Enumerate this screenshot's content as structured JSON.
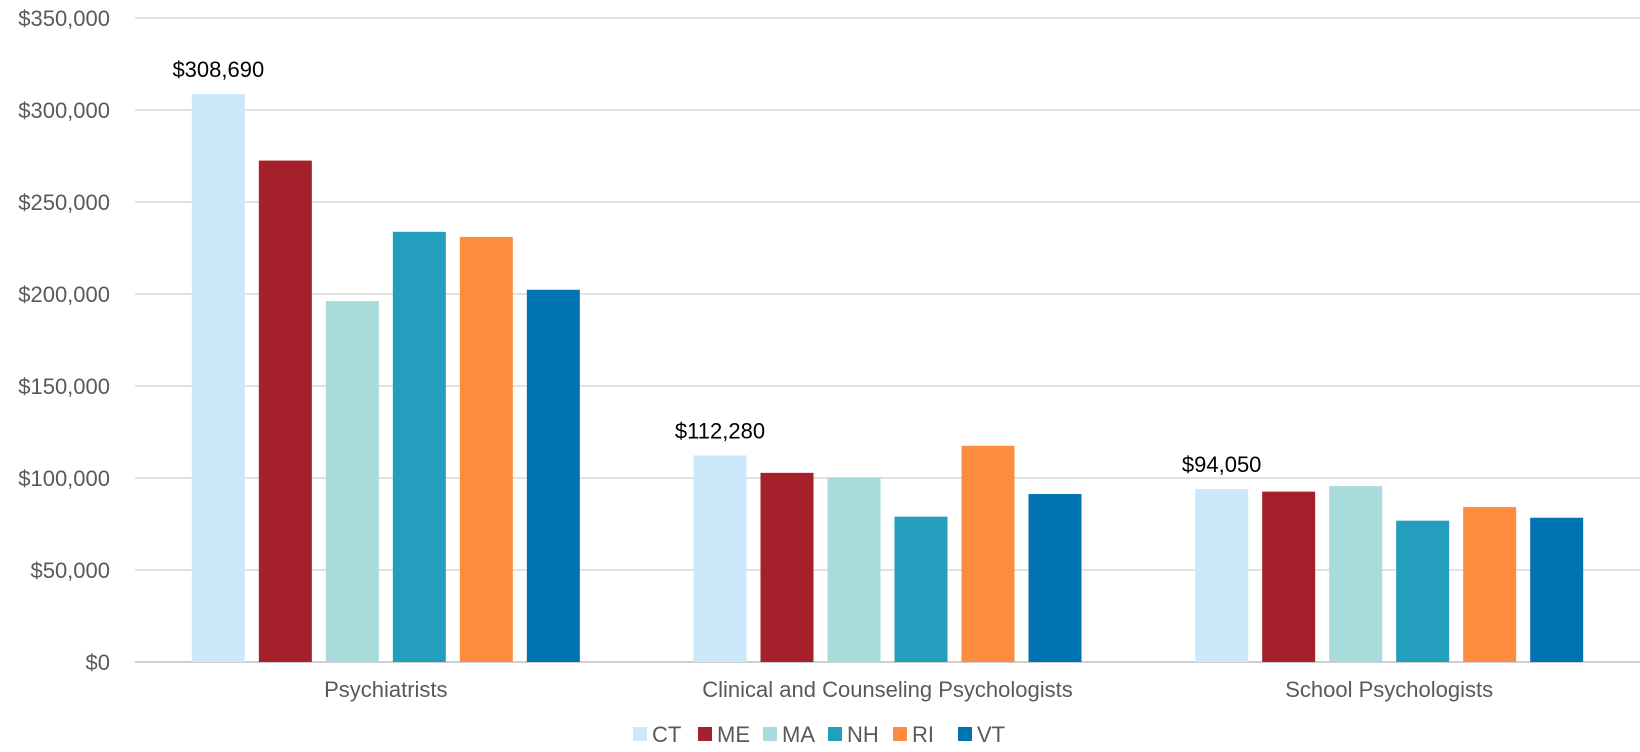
{
  "chart_data": {
    "type": "bar",
    "title": "",
    "xlabel": "",
    "ylabel": "",
    "ylim": [
      0,
      350000
    ],
    "y_ticks": [
      {
        "value": 0,
        "label": "$0"
      },
      {
        "value": 50000,
        "label": "$50,000"
      },
      {
        "value": 100000,
        "label": "$100,000"
      },
      {
        "value": 150000,
        "label": "$150,000"
      },
      {
        "value": 200000,
        "label": "$200,000"
      },
      {
        "value": 250000,
        "label": "$250,000"
      },
      {
        "value": 300000,
        "label": "$300,000"
      },
      {
        "value": 350000,
        "label": "$350,000"
      }
    ],
    "grid": true,
    "legend_position": "bottom",
    "categories": [
      "Psychiatrists",
      "Clinical and Counseling Psychologists",
      "School Psychologists"
    ],
    "series": [
      {
        "name": "CT",
        "color": "#cce9fb",
        "values": [
          308690,
          112280,
          94050
        ]
      },
      {
        "name": "ME",
        "color": "#a4202a",
        "values": [
          272500,
          102800,
          92600
        ]
      },
      {
        "name": "MA",
        "color": "#a8dcdc",
        "values": [
          196200,
          100300,
          95600
        ]
      },
      {
        "name": "NH",
        "color": "#239ebd",
        "values": [
          233800,
          79000,
          76800
        ]
      },
      {
        "name": "RI",
        "color": "#fe8c3f",
        "values": [
          231000,
          117500,
          84200
        ]
      },
      {
        "name": "VT",
        "color": "#0073b3",
        "values": [
          202300,
          91300,
          78400
        ]
      }
    ],
    "data_labels": [
      {
        "series": 0,
        "category": 0,
        "text": "$308,690"
      },
      {
        "series": 0,
        "category": 1,
        "text": "$112,280"
      },
      {
        "series": 0,
        "category": 2,
        "text": "$94,050"
      }
    ]
  }
}
